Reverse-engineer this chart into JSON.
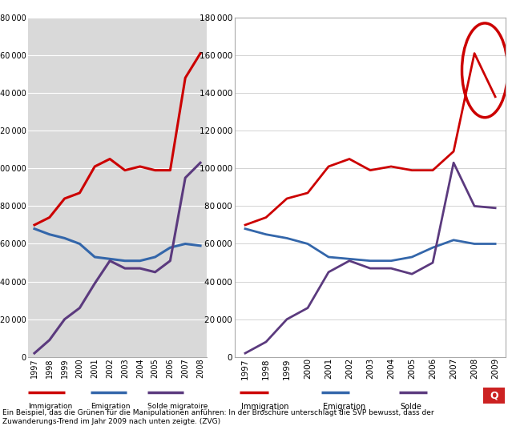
{
  "years_left": [
    1997,
    1998,
    1999,
    2000,
    2001,
    2002,
    2003,
    2004,
    2005,
    2006,
    2007,
    2008
  ],
  "years_right": [
    1997,
    1998,
    1999,
    2000,
    2001,
    2002,
    2003,
    2004,
    2005,
    2006,
    2007,
    2008,
    2009
  ],
  "immigration_left": [
    70000,
    74000,
    84000,
    87000,
    101000,
    105000,
    99000,
    101000,
    99000,
    99000,
    148000,
    161000
  ],
  "emigration_left": [
    68000,
    65000,
    63000,
    60000,
    53000,
    52000,
    51000,
    51000,
    53000,
    58000,
    60000,
    59000
  ],
  "solde_left": [
    2000,
    9000,
    20000,
    26000,
    39000,
    51000,
    47000,
    47000,
    45000,
    51000,
    95000,
    103000
  ],
  "immigration_right": [
    70000,
    74000,
    84000,
    87000,
    101000,
    105000,
    99000,
    101000,
    99000,
    99000,
    109000,
    161000,
    138000
  ],
  "emigration_right": [
    68000,
    65000,
    63000,
    60000,
    53000,
    52000,
    51000,
    51000,
    53000,
    58000,
    62000,
    60000,
    60000
  ],
  "solde_right": [
    2000,
    8000,
    20000,
    26000,
    45000,
    51000,
    47000,
    47000,
    44000,
    50000,
    103000,
    80000,
    79000
  ],
  "color_immigration": "#cc0000",
  "color_emigration": "#3366aa",
  "color_solde": "#5b3a7e",
  "left_bg": "#d9d9d9",
  "right_bg": "#ffffff",
  "right_outer_bg": "#f2f2f2",
  "ylim": [
    0,
    180000
  ],
  "yticks": [
    0,
    20000,
    40000,
    60000,
    80000,
    100000,
    120000,
    140000,
    160000,
    180000
  ],
  "legend_left": [
    "Immigration",
    "Emigration",
    "Solde migratoire"
  ],
  "legend_right": [
    "Immigration",
    "Emigration",
    "Solde"
  ],
  "caption": "Ein Beispiel, das die Grünen für die Manipulationen anführen: In der Broschüre unterschlägt die SVP bewusst, dass der\nZuwanderungs-Trend im Jahr 2009 nach unten zeigte. (ZVG)"
}
